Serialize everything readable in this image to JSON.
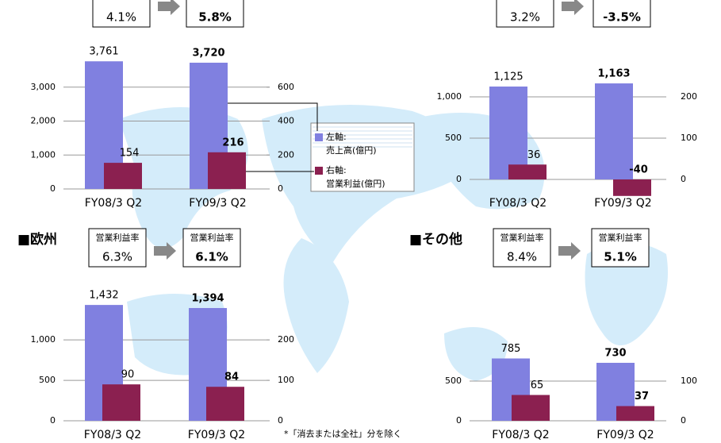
{
  "legend": {
    "items": [
      {
        "axis_label": "左軸:",
        "name": "売上高(億円)",
        "color": "#8080e0"
      },
      {
        "axis_label": "右軸:",
        "name": "営業利益(億円)",
        "color": "#8b2050"
      }
    ]
  },
  "footnote": "*「消去または全社」分を除く",
  "chart_data": [
    {
      "type": "bar",
      "margin_from": "4.1%",
      "margin_to": "5.8%",
      "categories": [
        "FY08/3 Q2",
        "FY09/3 Q2"
      ],
      "series": [
        {
          "color": "#8080e0",
          "values": [
            3761,
            3720
          ],
          "value_labels": [
            "3,761",
            "3,720"
          ]
        },
        {
          "color": "#8b2050",
          "axis": "y2",
          "values": [
            154,
            216
          ]
        }
      ],
      "ylim": [
        0,
        4000
      ],
      "yticks": [
        0,
        {
          "value": 1000,
          "label": "1,000"
        },
        {
          "value": 2000,
          "label": "2,000"
        },
        {
          "value": 3000,
          "label": "3,000"
        }
      ],
      "y2lim": [
        0,
        800
      ],
      "y2ticks": [
        0,
        200,
        400,
        600
      ],
      "grid": true
    },
    {
      "type": "bar",
      "margin_from": "3.2%",
      "margin_to": "-3.5%",
      "categories": [
        "FY08/3 Q2",
        "FY09/3 Q2"
      ],
      "series": [
        {
          "color": "#8080e0",
          "values": [
            1125,
            1163
          ],
          "value_labels": [
            "1,125",
            "1,163"
          ]
        },
        {
          "color": "#8b2050",
          "axis": "y2",
          "values": [
            36,
            -40
          ]
        }
      ],
      "ylim": [
        -150,
        1300
      ],
      "yticks": [
        0,
        500,
        {
          "value": 1000,
          "label": "1,000"
        }
      ],
      "y2lim": [
        -30,
        260
      ],
      "y2ticks": [
        0,
        100,
        200
      ],
      "grid": true
    },
    {
      "type": "bar",
      "region": "■欧州",
      "margin_label": "営業利益率",
      "margin_from": "6.3%",
      "margin_to": "6.1%",
      "categories": [
        "FY08/3 Q2",
        "FY09/3 Q2"
      ],
      "series": [
        {
          "color": "#8080e0",
          "values": [
            1432,
            1394
          ],
          "value_labels": [
            "1,432",
            "1,394"
          ]
        },
        {
          "color": "#8b2050",
          "axis": "y2",
          "values": [
            90,
            84
          ]
        }
      ],
      "ylim": [
        0,
        1600
      ],
      "yticks": [
        0,
        500,
        {
          "value": 1000,
          "label": "1,000"
        }
      ],
      "y2lim": [
        0,
        320
      ],
      "y2ticks": [
        0,
        100,
        200
      ],
      "grid": true
    },
    {
      "type": "bar",
      "region": "■その他",
      "margin_label": "営業利益率",
      "margin_from": "8.4%",
      "margin_to": "5.1%",
      "categories": [
        "FY08/3 Q2",
        "FY09/3 Q2"
      ],
      "series": [
        {
          "color": "#8080e0",
          "values": [
            785,
            730
          ]
        },
        {
          "color": "#8b2050",
          "axis": "y2",
          "values": [
            65,
            37
          ]
        }
      ],
      "ylim": [
        0,
        1000
      ],
      "yticks": [
        0,
        500
      ],
      "y2lim": [
        0,
        200
      ],
      "y2ticks": [
        0,
        100
      ],
      "grid": true
    }
  ]
}
